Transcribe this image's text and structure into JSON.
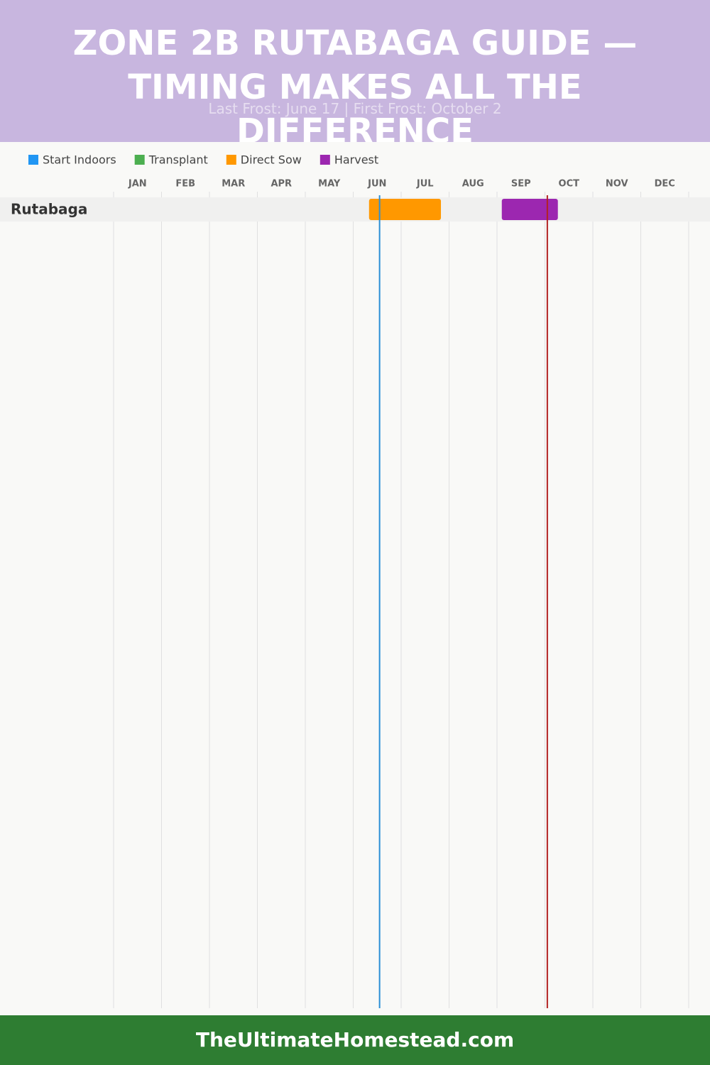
{
  "chart_data": {
    "type": "gantt",
    "title": "ZONE 2B RUTABAGA GUIDE — TIMING MAKES ALL THE DIFFERENCE",
    "subtitle": "Last Frost: June 17 | First Frost: October 2",
    "months": [
      "JAN",
      "FEB",
      "MAR",
      "APR",
      "MAY",
      "JUN",
      "JUL",
      "AUG",
      "SEP",
      "OCT",
      "NOV",
      "DEC"
    ],
    "xlim": [
      0,
      12
    ],
    "rows": [
      "Rutabaga"
    ],
    "series": [
      {
        "name": "Start Indoors",
        "color": "#2196f3",
        "values": [
          null
        ]
      },
      {
        "name": "Transplant",
        "color": "#4caf50",
        "values": [
          null
        ]
      },
      {
        "name": "Direct Sow",
        "color": "#ff9800",
        "values": [
          [
            5.33,
            6.83
          ]
        ]
      },
      {
        "name": "Harvest",
        "color": "#9c27b0",
        "values": [
          [
            8.1,
            9.27
          ]
        ]
      }
    ],
    "frost_lines": [
      {
        "value": 5.55,
        "color": "#2a8fd6"
      },
      {
        "value": 9.05,
        "color": "#b22222"
      }
    ],
    "footer": "TheUltimateHomestead.com"
  }
}
